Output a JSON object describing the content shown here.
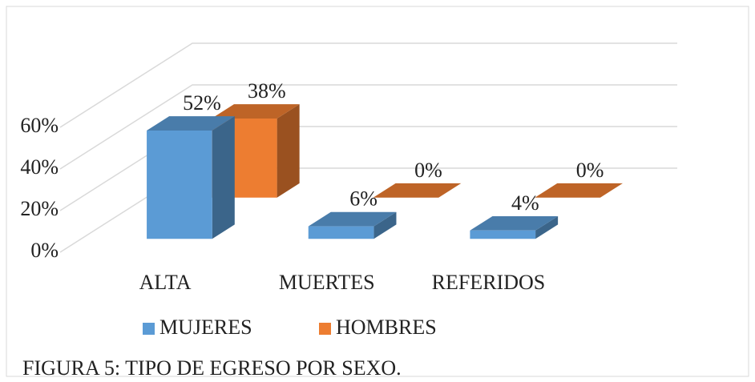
{
  "chart_data": {
    "type": "bar3d",
    "title": "FIGURA 5: TIPO DE EGRESO POR SEXO.",
    "categories": [
      "ALTA",
      "MUERTES",
      "REFERIDOS"
    ],
    "series": [
      {
        "name": "MUJERES",
        "color": "#5b9bd5",
        "values": [
          52,
          6,
          4
        ],
        "value_labels": [
          "52%",
          "6%",
          "4%"
        ]
      },
      {
        "name": "HOMBRES",
        "color": "#ed7d31",
        "values": [
          38,
          0,
          0
        ],
        "value_labels": [
          "38%",
          "0%",
          "0%"
        ]
      }
    ],
    "ylim": [
      0,
      60
    ],
    "yticks": [
      {
        "value": 0,
        "label": "0%"
      },
      {
        "value": 20,
        "label": "20%"
      },
      {
        "value": 40,
        "label": "40%"
      },
      {
        "value": 60,
        "label": "60%"
      }
    ],
    "grid": true,
    "legend": "bottom"
  }
}
